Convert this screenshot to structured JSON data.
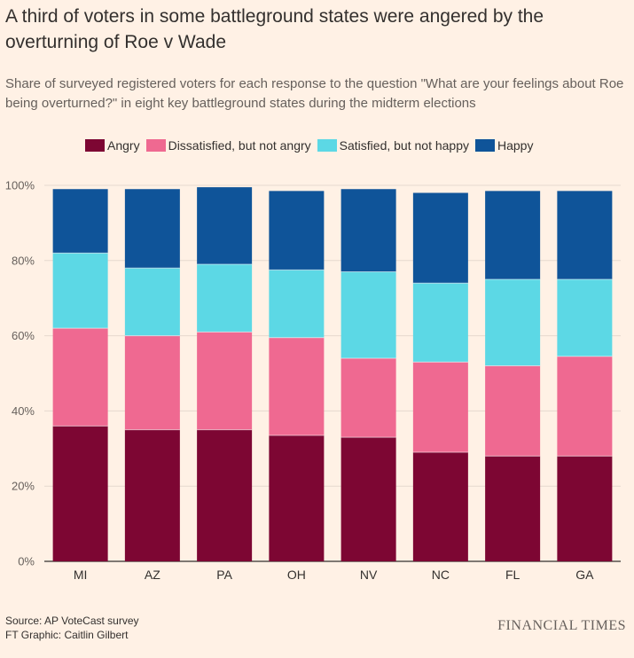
{
  "title": "A third of voters in some battleground states were angered by the overturning of Roe v Wade",
  "subtitle": "Share of surveyed registered voters for each response to the question \"What are your feelings about Roe being overturned?\" in eight key battleground states during the midterm elections",
  "legend": [
    {
      "label": "Angry",
      "color": "#7d0633"
    },
    {
      "label": "Dissatisfied, but not angry",
      "color": "#ef6991"
    },
    {
      "label": "Satisfied, but not happy",
      "color": "#5cd8e5"
    },
    {
      "label": "Happy",
      "color": "#0f5499"
    }
  ],
  "footer": {
    "source": "Source: AP VoteCast survey",
    "credit": "FT Graphic: Caitlin Gilbert"
  },
  "brand": "FINANCIAL TIMES",
  "chart_data": {
    "type": "bar",
    "stacked": true,
    "categories": [
      "MI",
      "AZ",
      "PA",
      "OH",
      "NV",
      "NC",
      "FL",
      "GA"
    ],
    "series": [
      {
        "name": "Angry",
        "color": "#7d0633",
        "values": [
          36,
          35,
          35,
          33.5,
          33,
          29,
          28,
          28
        ]
      },
      {
        "name": "Dissatisfied, but not angry",
        "color": "#ef6991",
        "values": [
          26,
          25,
          26,
          26,
          21,
          24,
          24,
          26.5
        ]
      },
      {
        "name": "Satisfied, but not happy",
        "color": "#5cd8e5",
        "values": [
          20,
          18,
          18,
          18,
          23,
          21,
          23,
          20.5
        ]
      },
      {
        "name": "Happy",
        "color": "#0f5499",
        "values": [
          17,
          21,
          20.5,
          21,
          22,
          24,
          23.5,
          23.5
        ]
      }
    ],
    "yticks": [
      "0%",
      "20%",
      "40%",
      "60%",
      "80%",
      "100%"
    ],
    "ylim": [
      0,
      100
    ],
    "grid": true,
    "legend_position": "top"
  }
}
